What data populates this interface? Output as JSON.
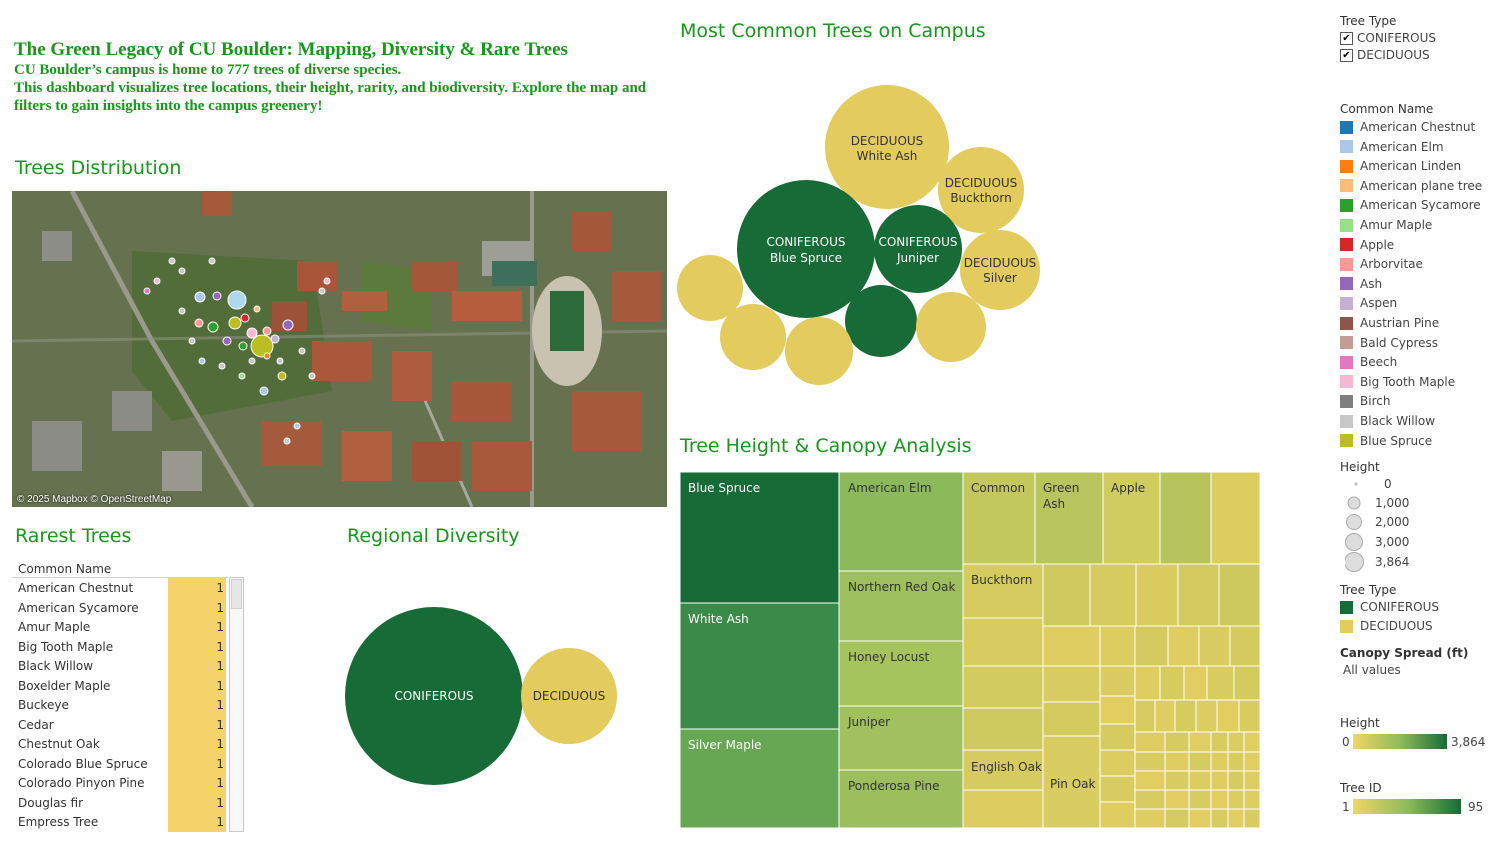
{
  "intro": {
    "title": "The Green Legacy of CU Boulder: Mapping, Diversity & Rare Trees",
    "line1": "CU Boulder’s campus is home to 777 trees of diverse species.",
    "line2": "This dashboard visualizes tree locations, their height, rarity, and biodiversity. Explore the map and filters to gain insights into the campus greenery!"
  },
  "sections": {
    "map_title": "Trees Distribution",
    "common_title": "Most Common Trees on Campus",
    "height_title": "Tree Height & Canopy Analysis",
    "rarest_title": "Rarest Trees",
    "diversity_title": "Regional Diversity"
  },
  "map": {
    "credit": "© 2025 Mapbox © OpenStreetMap"
  },
  "rarest": {
    "header": "Common Name",
    "rows": [
      {
        "name": "American Chestnut",
        "value": "1"
      },
      {
        "name": "American Sycamore",
        "value": "1"
      },
      {
        "name": "Amur Maple",
        "value": "1"
      },
      {
        "name": "Big Tooth Maple",
        "value": "1"
      },
      {
        "name": "Black Willow",
        "value": "1"
      },
      {
        "name": "Boxelder Maple",
        "value": "1"
      },
      {
        "name": "Buckeye",
        "value": "1"
      },
      {
        "name": "Cedar",
        "value": "1"
      },
      {
        "name": "Chestnut Oak",
        "value": "1"
      },
      {
        "name": "Colorado Blue Spruce",
        "value": "1"
      },
      {
        "name": "Colorado Pinyon Pine",
        "value": "1"
      },
      {
        "name": "Douglas fir",
        "value": "1"
      },
      {
        "name": "Empress Tree",
        "value": "1"
      }
    ]
  },
  "diversity": {
    "coniferous": "CONIFEROUS",
    "deciduous": "DECIDUOUS"
  },
  "common_bubbles": {
    "b1_type": "DECIDUOUS",
    "b1_name": "White Ash",
    "b2_type": "DECIDUOUS",
    "b2_name": "Buckthorn",
    "b3_type": "CONIFEROUS",
    "b3_name": "Blue Spruce",
    "b4_type": "CONIFEROUS",
    "b4_name": "Juniper",
    "b5_type": "DECIDUOUS",
    "b5_name": "Silver"
  },
  "treemap_labels": {
    "blue_spruce": "Blue Spruce",
    "white_ash": "White Ash",
    "silver_maple": "Silver Maple",
    "american_elm": "American Elm",
    "northern_red_oak": "Northern Red Oak",
    "honey_locust": "Honey Locust",
    "juniper": "Juniper",
    "ponderosa_pine": "Ponderosa Pine",
    "common": "Common",
    "green_ash": "Green Ash",
    "green_ash_l1": "Green",
    "green_ash_l2": "Ash",
    "apple": "Apple",
    "buckthorn": "Buckthorn",
    "english_oak": "English Oak",
    "pin_oak": "Pin Oak"
  },
  "legend": {
    "tree_type_filter_title": "Tree Type",
    "filter_coniferous": "CONIFEROUS",
    "filter_deciduous": "DECIDUOUS",
    "common_name_title": "Common Name",
    "common_names": [
      {
        "name": "American Chestnut",
        "color": "#1f77b4"
      },
      {
        "name": "American Elm",
        "color": "#aec7e8"
      },
      {
        "name": "American Linden",
        "color": "#ff7f0e"
      },
      {
        "name": "American plane tree",
        "color": "#ffbb78"
      },
      {
        "name": "American Sycamore",
        "color": "#2ca02c"
      },
      {
        "name": "Amur Maple",
        "color": "#98df8a"
      },
      {
        "name": "Apple",
        "color": "#d62728"
      },
      {
        "name": "Arborvitae",
        "color": "#ff9896"
      },
      {
        "name": "Ash",
        "color": "#9467bd"
      },
      {
        "name": "Aspen",
        "color": "#c5b0d5"
      },
      {
        "name": "Austrian Pine",
        "color": "#8c564b"
      },
      {
        "name": "Bald Cypress",
        "color": "#c49c94"
      },
      {
        "name": "Beech",
        "color": "#e377c2"
      },
      {
        "name": "Big Tooth Maple",
        "color": "#f7b6d2"
      },
      {
        "name": "Birch",
        "color": "#7f7f7f"
      },
      {
        "name": "Black Willow",
        "color": "#c7c7c7"
      },
      {
        "name": "Blue Spruce",
        "color": "#bcbd22"
      }
    ],
    "height_title": "Height",
    "height_sizes": [
      "0",
      "1,000",
      "2,000",
      "3,000",
      "3,864"
    ],
    "tree_type_title": "Tree Type",
    "type_coniferous": "CONIFEROUS",
    "type_deciduous": "DECIDUOUS",
    "coniferous_color": "#176b36",
    "deciduous_color": "#e3cb5e",
    "canopy_title": "Canopy Spread (ft)",
    "canopy_value": "All values",
    "height_grad_title": "Height",
    "height_grad_min": "0",
    "height_grad_max": "3,864",
    "treeid_title": "Tree ID",
    "treeid_min": "1",
    "treeid_max": "95"
  }
}
